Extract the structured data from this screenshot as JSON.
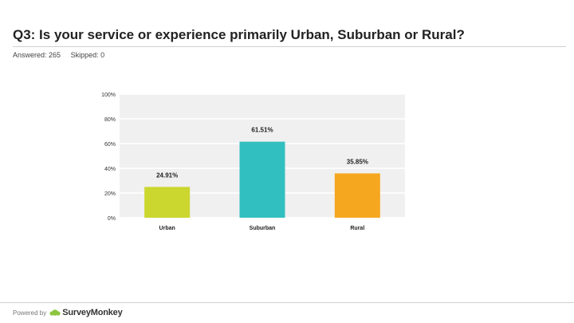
{
  "question": {
    "title": "Q3: Is your service or experience primarily Urban, Suburban or Rural?"
  },
  "stats": {
    "answered": "Answered: 265",
    "skipped": "Skipped: 0"
  },
  "footer": {
    "powered_by": "Powered by",
    "brand": "SurveyMonkey"
  },
  "colors": {
    "urban": "#cbd62f",
    "suburban": "#32bfbf",
    "rural": "#f5a720",
    "plot_bg": "#f0f0f0",
    "grid": "#ffffff"
  },
  "chart_data": {
    "type": "bar",
    "categories": [
      "Urban",
      "Suburban",
      "Rural"
    ],
    "values": [
      24.91,
      61.51,
      35.85
    ],
    "data_labels": [
      "24.91%",
      "61.51%",
      "35.85%"
    ],
    "yticks": [
      0,
      20,
      40,
      60,
      80,
      100
    ],
    "ytick_labels": [
      "0%",
      "20%",
      "40%",
      "60%",
      "80%",
      "100%"
    ],
    "ylim": [
      0,
      100
    ],
    "title": "",
    "xlabel": "",
    "ylabel": ""
  }
}
